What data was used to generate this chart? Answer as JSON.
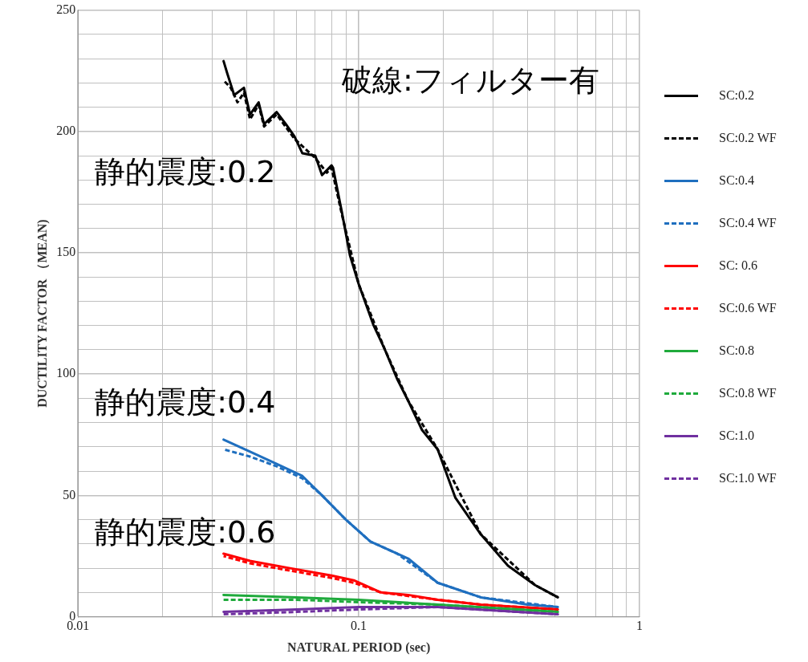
{
  "chart_data": {
    "type": "line",
    "xlabel": "NATURAL PERIOD (sec)",
    "ylabel": "DUCTILITY FACTOR （MEAN)",
    "log": "x",
    "grid": true,
    "legend": "right",
    "marker": "none",
    "xlim": [
      0.01,
      1
    ],
    "ylim": [
      0,
      250
    ],
    "xticks": [
      {
        "value": 0.01,
        "label": "0.01"
      },
      {
        "value": 0.02,
        "label": null
      },
      {
        "value": 0.03,
        "label": null
      },
      {
        "value": 0.04,
        "label": null
      },
      {
        "value": 0.05,
        "label": null
      },
      {
        "value": 0.06,
        "label": null
      },
      {
        "value": 0.07,
        "label": null
      },
      {
        "value": 0.08,
        "label": null
      },
      {
        "value": 0.09,
        "label": null
      },
      {
        "value": 0.1,
        "label": "0.1"
      },
      {
        "value": 0.2,
        "label": null
      },
      {
        "value": 0.3,
        "label": null
      },
      {
        "value": 0.4,
        "label": null
      },
      {
        "value": 0.5,
        "label": null
      },
      {
        "value": 0.6,
        "label": null
      },
      {
        "value": 0.7,
        "label": null
      },
      {
        "value": 0.8,
        "label": null
      },
      {
        "value": 0.9,
        "label": null
      },
      {
        "value": 1,
        "label": "1"
      }
    ],
    "yticks": [
      0,
      {
        "value": 10,
        "label": null
      },
      {
        "value": 20,
        "label": null
      },
      {
        "value": 30,
        "label": null
      },
      {
        "value": 40,
        "label": null
      },
      50,
      {
        "value": 60,
        "label": null
      },
      {
        "value": 70,
        "label": null
      },
      {
        "value": 80,
        "label": null
      },
      {
        "value": 90,
        "label": null
      },
      100,
      {
        "value": 110,
        "label": null
      },
      {
        "value": 120,
        "label": null
      },
      {
        "value": 130,
        "label": null
      },
      {
        "value": 140,
        "label": null
      },
      150,
      {
        "value": 160,
        "label": null
      },
      {
        "value": 170,
        "label": null
      },
      {
        "value": 180,
        "label": null
      },
      {
        "value": 190,
        "label": null
      },
      200,
      {
        "value": 210,
        "label": null
      },
      {
        "value": 220,
        "label": null
      },
      {
        "value": 230,
        "label": null
      },
      {
        "value": 240,
        "label": null
      },
      250
    ],
    "annotations": [
      "破線:フィルター有",
      "静的震度:0.2",
      "静的震度:0.4",
      "静的震度:0.6"
    ],
    "series": [
      {
        "name": "SC:0.2",
        "color": "#000000",
        "line_style": "solid",
        "x": [
          0.033,
          0.034,
          0.036,
          0.039,
          0.041,
          0.044,
          0.046,
          0.051,
          0.055,
          0.059,
          0.063,
          0.07,
          0.074,
          0.077,
          0.08,
          0.081,
          0.087,
          0.093,
          0.1,
          0.113,
          0.124,
          0.137,
          0.15,
          0.168,
          0.191,
          0.221,
          0.272,
          0.34,
          0.425,
          0.512
        ],
        "values": [
          229,
          224,
          215,
          218,
          207,
          212,
          203,
          208,
          203,
          198,
          191,
          190,
          182,
          184,
          186,
          185,
          167,
          149,
          137,
          120,
          110,
          98,
          89,
          77,
          69,
          49,
          34,
          21,
          13,
          8
        ]
      },
      {
        "name": "SC:0.2 WF",
        "color": "#000000",
        "line_style": "dashed",
        "x": [
          0.033,
          0.035,
          0.037,
          0.039,
          0.041,
          0.044,
          0.046,
          0.051,
          0.059,
          0.07,
          0.077,
          0.08,
          0.087,
          0.1,
          0.124,
          0.15,
          0.191,
          0.272,
          0.425,
          0.512
        ],
        "values": [
          221,
          218,
          212,
          216,
          205,
          211,
          202,
          207,
          197,
          189,
          183,
          185,
          166,
          137,
          110,
          89,
          69,
          34,
          13,
          8
        ]
      },
      {
        "name": "SC:0.4",
        "color": "#1f6fbf",
        "line_style": "solid",
        "x": [
          0.033,
          0.041,
          0.051,
          0.063,
          0.074,
          0.09,
          0.11,
          0.137,
          0.15,
          0.191,
          0.272,
          0.4,
          0.512
        ],
        "values": [
          73,
          68,
          63,
          58,
          50,
          40,
          31,
          26,
          24,
          14,
          8,
          5,
          4
        ]
      },
      {
        "name": "SC:0.4 WF",
        "color": "#1f6fbf",
        "line_style": "dashed",
        "x": [
          0.033,
          0.041,
          0.051,
          0.063,
          0.074,
          0.09,
          0.11,
          0.137,
          0.191,
          0.272,
          0.512
        ],
        "values": [
          69,
          66,
          62,
          57,
          50,
          40,
          31,
          26,
          14,
          8,
          4
        ]
      },
      {
        "name": "SC: 0.6",
        "color": "#ff0000",
        "line_style": "solid",
        "x": [
          0.033,
          0.041,
          0.057,
          0.08,
          0.096,
          0.12,
          0.15,
          0.191,
          0.272,
          0.512
        ],
        "values": [
          26,
          23,
          20,
          17,
          15,
          10,
          9,
          7,
          5,
          3
        ]
      },
      {
        "name": "SC:0.6 WF",
        "color": "#ff0000",
        "line_style": "dashed",
        "x": [
          0.033,
          0.041,
          0.057,
          0.08,
          0.096,
          0.12,
          0.191,
          0.272,
          0.512
        ],
        "values": [
          25,
          22,
          19,
          16,
          14,
          10,
          7,
          5,
          3
        ]
      },
      {
        "name": "SC:0.8",
        "color": "#1faa3c",
        "line_style": "solid",
        "x": [
          0.033,
          0.06,
          0.1,
          0.191,
          0.512
        ],
        "values": [
          9,
          8,
          7,
          5,
          2
        ]
      },
      {
        "name": "SC:0.8 WF",
        "color": "#1faa3c",
        "line_style": "dashed",
        "x": [
          0.033,
          0.06,
          0.1,
          0.191,
          0.512
        ],
        "values": [
          7,
          7,
          6,
          5,
          2
        ]
      },
      {
        "name": "SC:1.0",
        "color": "#7030a0",
        "line_style": "solid",
        "x": [
          0.033,
          0.06,
          0.1,
          0.191,
          0.512
        ],
        "values": [
          2,
          3,
          4,
          4,
          1
        ]
      },
      {
        "name": "SC:1.0 WF",
        "color": "#7030a0",
        "line_style": "dashed",
        "x": [
          0.033,
          0.06,
          0.1,
          0.191,
          0.512
        ],
        "values": [
          1,
          2,
          3,
          4,
          1
        ]
      }
    ]
  }
}
